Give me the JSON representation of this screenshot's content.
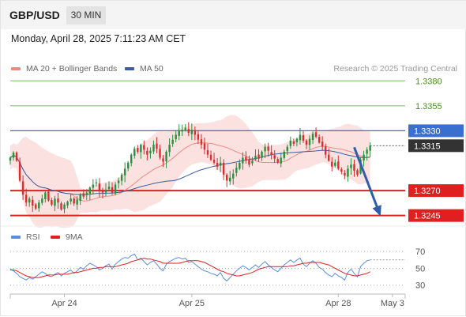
{
  "header": {
    "pair": "GBP/USD",
    "timeframe": "30 MIN",
    "datetime": "Monday, April 28, 2025 7:11:23 AM CET"
  },
  "legend": {
    "ma20_label": "MA 20 + Bollinger Bands",
    "ma50_label": "MA 50",
    "credit": "Research © 2025 Trading Central",
    "rsi_label": "RSI",
    "ma9_label": "9MA"
  },
  "colors": {
    "up": "#27913f",
    "down": "#d62f2f",
    "ma20": "#f08a80",
    "bollinger_fill": "#fbdcdc",
    "ma50": "#3a5e9b",
    "resistance": "#7bbf4f",
    "support": "#e02020",
    "pivot": "#3a6fd0",
    "current": "#333333",
    "arrow": "#2f5da8",
    "rsi": "#5b8ee0",
    "rsi_ma": "#e02020"
  },
  "chart_data": [
    {
      "type": "candlestick",
      "title": "GBP/USD 30 MIN",
      "series": [
        {
          "name": "MA 20 + Bollinger Bands"
        },
        {
          "name": "MA 50"
        }
      ],
      "x_ticks": [
        {
          "label": "Apr 24",
          "index": 17
        },
        {
          "label": "Apr 25",
          "index": 57
        },
        {
          "label": "Apr 28",
          "index": 103
        },
        {
          "label": "May 3",
          "index": 120
        }
      ],
      "x_range": [
        0,
        124
      ],
      "ylim": [
        1.3236,
        1.3385
      ],
      "horizontal_levels": [
        {
          "value": 1.338,
          "label": "1.3380",
          "kind": "resistance"
        },
        {
          "value": 1.3355,
          "label": "1.3355",
          "kind": "resistance"
        },
        {
          "value": 1.333,
          "label": "1.3330",
          "kind": "pivot"
        },
        {
          "value": 1.3315,
          "label": "1.3315",
          "kind": "current"
        },
        {
          "value": 1.327,
          "label": "1.3270",
          "kind": "support"
        },
        {
          "value": 1.3245,
          "label": "1.3245",
          "kind": "support"
        }
      ],
      "forecast_path": [
        {
          "index": 108,
          "value": 1.3315
        },
        {
          "index": 116,
          "value": 1.3245
        }
      ],
      "closes": [
        1.3303,
        1.3308,
        1.33,
        1.328,
        1.3266,
        1.3258,
        1.3262,
        1.3255,
        1.3252,
        1.3258,
        1.3262,
        1.3268,
        1.326,
        1.3256,
        1.3262,
        1.3258,
        1.3251,
        1.3256,
        1.3259,
        1.3262,
        1.3257,
        1.3261,
        1.3266,
        1.3264,
        1.3268,
        1.3273,
        1.3276,
        1.3278,
        1.327,
        1.3268,
        1.3271,
        1.3274,
        1.3268,
        1.3276,
        1.328,
        1.3286,
        1.3292,
        1.3298,
        1.3306,
        1.3312,
        1.3309,
        1.3316,
        1.3311,
        1.3306,
        1.331,
        1.3316,
        1.3312,
        1.3303,
        1.3299,
        1.3309,
        1.3316,
        1.3321,
        1.3326,
        1.333,
        1.3331,
        1.3333,
        1.3328,
        1.3331,
        1.3326,
        1.3321,
        1.3316,
        1.3311,
        1.3306,
        1.3301,
        1.3298,
        1.3294,
        1.3298,
        1.3286,
        1.328,
        1.3283,
        1.3287,
        1.3293,
        1.3298,
        1.3303,
        1.33,
        1.3296,
        1.33,
        1.3305,
        1.3302,
        1.3309,
        1.3314,
        1.331,
        1.3306,
        1.3302,
        1.3298,
        1.3303,
        1.3309,
        1.3314,
        1.332,
        1.3317,
        1.3322,
        1.3326,
        1.332,
        1.3316,
        1.3322,
        1.3327,
        1.3324,
        1.3318,
        1.3314,
        1.3306,
        1.33,
        1.3294,
        1.3298,
        1.3292,
        1.3289,
        1.3285,
        1.3292,
        1.3296,
        1.329,
        1.3286,
        1.3301,
        1.3306,
        1.3311,
        1.3315
      ]
    },
    {
      "type": "line",
      "title": "RSI",
      "series": [
        {
          "name": "RSI"
        },
        {
          "name": "9MA"
        }
      ],
      "y_ticks": [
        70,
        50,
        30
      ],
      "ylim": [
        25,
        72
      ],
      "rsi_values": [
        49,
        47,
        44,
        40,
        38,
        36,
        39,
        37,
        40,
        43,
        46,
        44,
        41,
        40,
        43,
        45,
        41,
        44,
        46,
        48,
        44,
        47,
        51,
        49,
        53,
        56,
        54,
        52,
        48,
        50,
        53,
        55,
        49,
        55,
        58,
        61,
        63,
        62,
        65,
        67,
        60,
        62,
        58,
        54,
        57,
        59,
        55,
        50,
        47,
        55,
        58,
        60,
        62,
        63,
        61,
        62,
        57,
        58,
        55,
        52,
        49,
        47,
        46,
        44,
        43,
        41,
        45,
        38,
        35,
        39,
        43,
        47,
        50,
        53,
        51,
        48,
        51,
        54,
        51,
        55,
        58,
        54,
        51,
        48,
        46,
        50,
        54,
        57,
        60,
        57,
        60,
        62,
        55,
        52,
        56,
        59,
        56,
        51,
        49,
        45,
        42,
        40,
        44,
        41,
        39,
        36,
        45,
        49,
        44,
        40,
        52,
        56,
        59,
        60
      ],
      "ma9_values": [
        48,
        48,
        47,
        45,
        43,
        41,
        40,
        39,
        39,
        39,
        40,
        41,
        42,
        42,
        42,
        43,
        43,
        43,
        43,
        44,
        45,
        45,
        46,
        47,
        48,
        49,
        50,
        50,
        51,
        51,
        52,
        52,
        52,
        52,
        53,
        54,
        55,
        56,
        58,
        59,
        60,
        61,
        62,
        61,
        61,
        60,
        59,
        58,
        56,
        56,
        56,
        56,
        56,
        56,
        57,
        58,
        59,
        59,
        59,
        59,
        58,
        57,
        55,
        53,
        51,
        49,
        47,
        46,
        44,
        43,
        42,
        41,
        41,
        42,
        43,
        44,
        45,
        47,
        49,
        50,
        51,
        52,
        52,
        52,
        52,
        52,
        52,
        52,
        53,
        53,
        54,
        55,
        56,
        56,
        57,
        57,
        57,
        57,
        56,
        55,
        54,
        52,
        50,
        48,
        46,
        44,
        43,
        42,
        41,
        41,
        42,
        43,
        44,
        46
      ]
    }
  ]
}
